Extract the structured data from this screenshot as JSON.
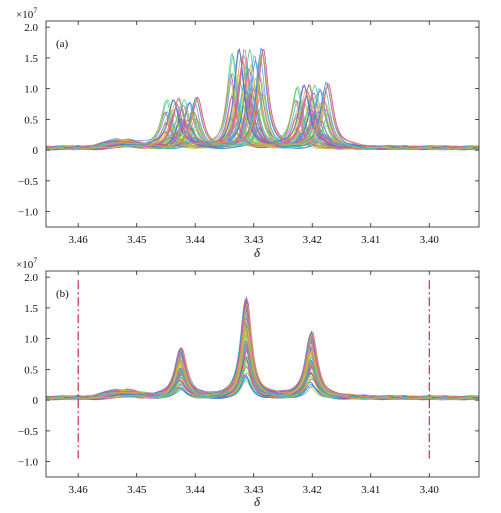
{
  "chart_data": [
    {
      "type": "line",
      "panel_label": "(a)",
      "aligned": false,
      "xlabel": "δ",
      "ylabel": "",
      "multiplier_label": "×10",
      "multiplier_exp": "7",
      "xlim": [
        3.4655,
        3.3915
      ],
      "ylim": [
        -1.25,
        2.1
      ],
      "xticks": [
        3.46,
        3.45,
        3.44,
        3.43,
        3.42,
        3.41,
        3.4
      ],
      "xtick_labels": [
        "3.46",
        "3.45",
        "3.44",
        "3.43",
        "3.42",
        "3.41",
        "3.40"
      ],
      "yticks": [
        2.0,
        1.5,
        1.0,
        0.5,
        0,
        -0.5,
        -1.0
      ],
      "ytick_labels": [
        "2.0",
        "1.5",
        "1.0",
        "0.5",
        "0",
        "−0.5",
        "−1.0"
      ],
      "peaks_ppm": [
        3.4425,
        3.4313,
        3.4202
      ],
      "peak_heights_approx": [
        0.8,
        1.6,
        1.05
      ],
      "n_series": 60
    },
    {
      "type": "line",
      "panel_label": "(b)",
      "aligned": true,
      "xlabel": "δ",
      "ylabel": "",
      "multiplier_label": "×10",
      "multiplier_exp": "7",
      "xlim": [
        3.4655,
        3.3915
      ],
      "ylim": [
        -1.25,
        2.1
      ],
      "xticks": [
        3.46,
        3.45,
        3.44,
        3.43,
        3.42,
        3.41,
        3.4
      ],
      "xtick_labels": [
        "3.46",
        "3.45",
        "3.44",
        "3.43",
        "3.42",
        "3.41",
        "3.40"
      ],
      "yticks": [
        2.0,
        1.5,
        1.0,
        0.5,
        0,
        -0.5,
        -1.0
      ],
      "ytick_labels": [
        "2.0",
        "1.5",
        "1.0",
        "0.5",
        "0",
        "−0.5",
        "−1.0"
      ],
      "peaks_ppm": [
        3.4425,
        3.4313,
        3.4202
      ],
      "peak_heights_approx": [
        0.8,
        1.6,
        1.05
      ],
      "boundary_lines_ppm": [
        3.46,
        3.4
      ],
      "n_series": 60
    }
  ],
  "palette": [
    "#3a7bd5",
    "#5aa0e6",
    "#2ec4b6",
    "#48c774",
    "#7ad35a",
    "#b7cc3c",
    "#e0a83a",
    "#e85d9a",
    "#d6338a",
    "#9b59d0"
  ],
  "boundary_color": "#c4002a"
}
